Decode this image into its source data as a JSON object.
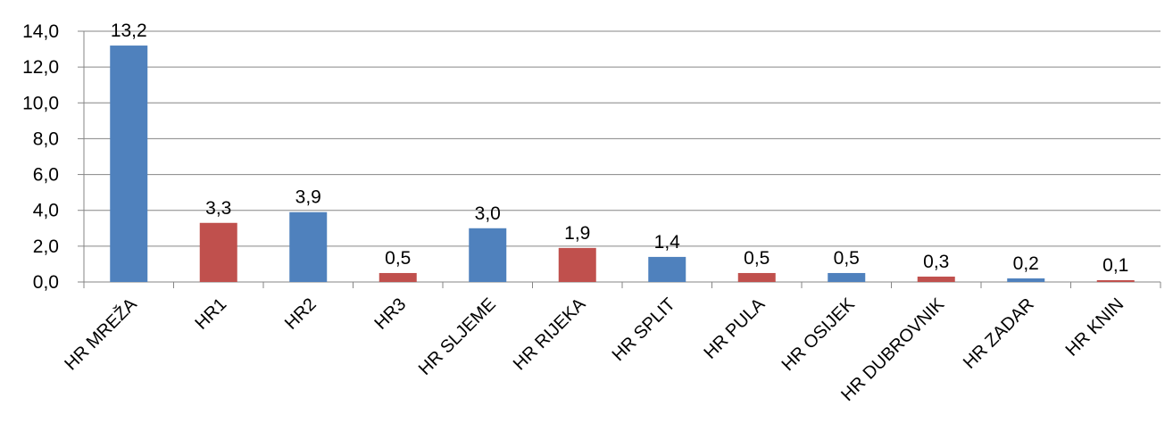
{
  "chart_data": {
    "type": "bar",
    "categories": [
      "HR MREŽA",
      "HR1",
      "HR2",
      "HR3",
      "HR SLJEME",
      "HR RIJEKA",
      "HR SPLIT",
      "HR PULA",
      "HR OSIJEK",
      "HR DUBROVNIK",
      "HR ZADAR",
      "HR KNIN"
    ],
    "values": [
      13.2,
      3.3,
      3.9,
      0.5,
      3.0,
      1.9,
      1.4,
      0.5,
      0.5,
      0.3,
      0.2,
      0.1
    ],
    "data_labels": [
      "13,2",
      "3,3",
      "3,9",
      "0,5",
      "3,0",
      "1,9",
      "1,4",
      "0,5",
      "0,5",
      "0,3",
      "0,2",
      "0,1"
    ],
    "bar_colors": [
      "#4f81bd",
      "#c0504d",
      "#4f81bd",
      "#c0504d",
      "#4f81bd",
      "#c0504d",
      "#4f81bd",
      "#c0504d",
      "#4f81bd",
      "#c0504d",
      "#4f81bd",
      "#c0504d"
    ],
    "y_ticks": [
      "0,0",
      "2,0",
      "4,0",
      "6,0",
      "8,0",
      "10,0",
      "12,0",
      "14,0"
    ],
    "ylim": [
      0,
      14
    ],
    "grid": true,
    "legend": "none",
    "title": "",
    "xlabel": "",
    "ylabel": ""
  }
}
